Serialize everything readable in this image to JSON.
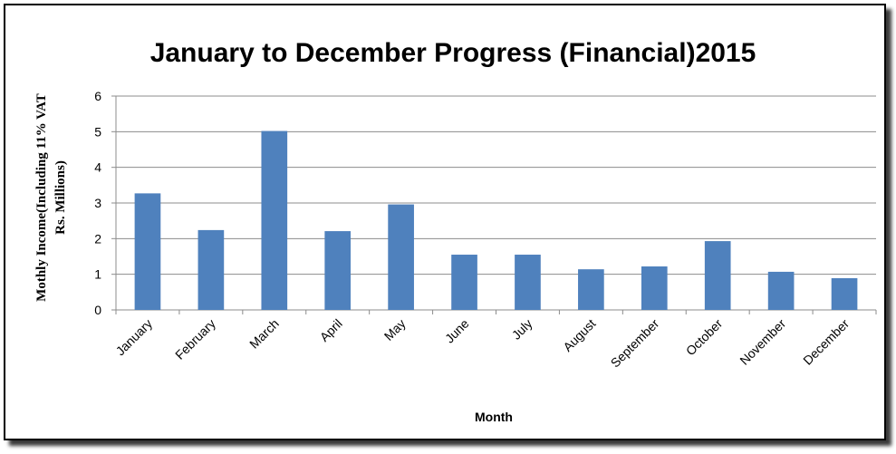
{
  "chart_data": {
    "type": "bar",
    "title": "January to December Progress (Financial)2015",
    "xlabel": "Month",
    "ylabel_lines": [
      "Mothly Income(Including 11% VAT",
      "Rs. Millions)"
    ],
    "categories": [
      "January",
      "February",
      "March",
      "April",
      "May",
      "June",
      "July",
      "August",
      "September",
      "October",
      "November",
      "December"
    ],
    "values": [
      3.27,
      2.24,
      5.02,
      2.21,
      2.96,
      1.55,
      1.55,
      1.14,
      1.22,
      1.93,
      1.07,
      0.89
    ],
    "ylim": [
      0,
      6
    ],
    "yticks": [
      0,
      1,
      2,
      3,
      4,
      5,
      6
    ],
    "grid": true,
    "legend": "none",
    "bar_color": "#4f81bd"
  }
}
